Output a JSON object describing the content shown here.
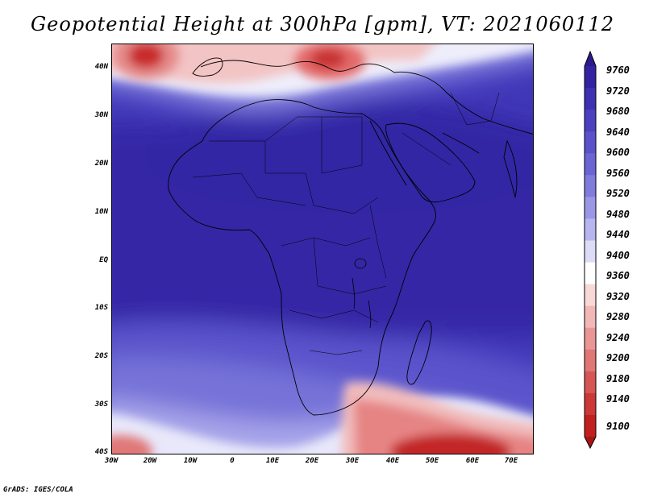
{
  "title": "Geopotential Height at 300hPa [gpm], VT: 2021060112",
  "footer": "GrADS: IGES/COLA",
  "axes": {
    "lat_labels": [
      "40N",
      "30N",
      "20N",
      "10N",
      "EQ",
      "10S",
      "20S",
      "30S",
      "40S"
    ],
    "lon_labels": [
      "30W",
      "20W",
      "10W",
      "0",
      "10E",
      "20E",
      "30E",
      "40E",
      "50E",
      "60E",
      "70E"
    ]
  },
  "colorbar": {
    "labels": [
      "9760",
      "9720",
      "9680",
      "9640",
      "9600",
      "9560",
      "9520",
      "9480",
      "9440",
      "9400",
      "9360",
      "9320",
      "9280",
      "9240",
      "9200",
      "9180",
      "9140",
      "9100"
    ],
    "colors": [
      "#2a1a8c",
      "#3323a0",
      "#3d31b2",
      "#4a40c0",
      "#5a52cb",
      "#6a64d4",
      "#807cdc",
      "#9a97e6",
      "#b8b6ef",
      "#dcdcf8",
      "#ffffff",
      "#f9d8d8",
      "#f2b7b7",
      "#ea9696",
      "#e07676",
      "#d65656",
      "#cc3838",
      "#c21f1f",
      "#a81515"
    ]
  }
}
